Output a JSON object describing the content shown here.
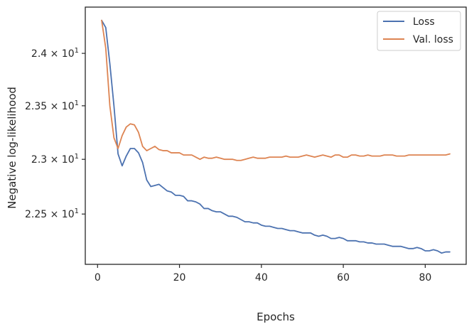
{
  "chart_data": {
    "type": "line",
    "title": "",
    "xlabel": "Epochs",
    "ylabel": "Negative log-likelihood",
    "xlim": [
      -3,
      90
    ],
    "ylim": [
      22.05,
      24.45
    ],
    "y_scale": "log",
    "grid": false,
    "legend_position": "top-right",
    "x_ticks": [
      0,
      20,
      40,
      60,
      80
    ],
    "x_tick_labels": [
      "0",
      "20",
      "40",
      "60",
      "80"
    ],
    "y_ticks": [
      22.5,
      23.0,
      23.5,
      24.0
    ],
    "y_tick_labels": [
      {
        "mantissa": "2.25",
        "exp": "1"
      },
      {
        "mantissa": "2.3",
        "exp": "1"
      },
      {
        "mantissa": "2.35",
        "exp": "1"
      },
      {
        "mantissa": "2.4",
        "exp": "1"
      }
    ],
    "series": [
      {
        "name": "Loss",
        "color": "#4c72b0",
        "x": [
          1,
          2,
          3,
          4,
          5,
          6,
          7,
          8,
          9,
          10,
          11,
          12,
          13,
          14,
          15,
          16,
          17,
          18,
          19,
          20,
          21,
          22,
          23,
          24,
          25,
          26,
          27,
          28,
          29,
          30,
          31,
          32,
          33,
          34,
          35,
          36,
          37,
          38,
          39,
          40,
          41,
          42,
          43,
          44,
          45,
          46,
          47,
          48,
          49,
          50,
          51,
          52,
          53,
          54,
          55,
          56,
          57,
          58,
          59,
          60,
          61,
          62,
          63,
          64,
          65,
          66,
          67,
          68,
          69,
          70,
          71,
          72,
          73,
          74,
          75,
          76,
          77,
          78,
          79,
          80,
          81,
          82,
          83,
          84,
          85,
          86
        ],
        "values": [
          24.32,
          24.25,
          23.9,
          23.5,
          23.05,
          22.94,
          23.03,
          23.1,
          23.1,
          23.06,
          22.97,
          22.81,
          22.75,
          22.76,
          22.77,
          22.74,
          22.71,
          22.7,
          22.67,
          22.67,
          22.66,
          22.62,
          22.62,
          22.61,
          22.59,
          22.55,
          22.55,
          22.53,
          22.52,
          22.52,
          22.5,
          22.48,
          22.48,
          22.47,
          22.45,
          22.43,
          22.43,
          22.42,
          22.42,
          22.4,
          22.39,
          22.39,
          22.38,
          22.37,
          22.37,
          22.36,
          22.35,
          22.35,
          22.34,
          22.33,
          22.33,
          22.33,
          22.31,
          22.3,
          22.31,
          22.3,
          22.28,
          22.28,
          22.29,
          22.28,
          22.26,
          22.26,
          22.26,
          22.25,
          22.25,
          22.24,
          22.24,
          22.23,
          22.23,
          22.23,
          22.22,
          22.21,
          22.21,
          22.21,
          22.2,
          22.19,
          22.19,
          22.2,
          22.19,
          22.17,
          22.17,
          22.18,
          22.17,
          22.15,
          22.16,
          22.16
        ]
      },
      {
        "name": "Val. loss",
        "color": "#dd8452",
        "x": [
          1,
          2,
          3,
          4,
          5,
          6,
          7,
          8,
          9,
          10,
          11,
          12,
          13,
          14,
          15,
          16,
          17,
          18,
          19,
          20,
          21,
          22,
          23,
          24,
          25,
          26,
          27,
          28,
          29,
          30,
          31,
          32,
          33,
          34,
          35,
          36,
          37,
          38,
          39,
          40,
          41,
          42,
          43,
          44,
          45,
          46,
          47,
          48,
          49,
          50,
          51,
          52,
          53,
          54,
          55,
          56,
          57,
          58,
          59,
          60,
          61,
          62,
          63,
          64,
          65,
          66,
          67,
          68,
          69,
          70,
          71,
          72,
          73,
          74,
          75,
          76,
          77,
          78,
          79,
          80,
          81,
          82,
          83,
          84,
          85,
          86
        ],
        "values": [
          24.32,
          24.05,
          23.5,
          23.2,
          23.1,
          23.22,
          23.3,
          23.33,
          23.32,
          23.25,
          23.12,
          23.08,
          23.1,
          23.12,
          23.09,
          23.08,
          23.08,
          23.06,
          23.06,
          23.06,
          23.04,
          23.04,
          23.04,
          23.02,
          23.0,
          23.02,
          23.01,
          23.01,
          23.02,
          23.01,
          23.0,
          23.0,
          23.0,
          22.99,
          22.99,
          23.0,
          23.01,
          23.02,
          23.01,
          23.01,
          23.01,
          23.02,
          23.02,
          23.02,
          23.02,
          23.03,
          23.02,
          23.02,
          23.02,
          23.03,
          23.04,
          23.03,
          23.02,
          23.03,
          23.04,
          23.03,
          23.02,
          23.04,
          23.04,
          23.02,
          23.02,
          23.04,
          23.04,
          23.03,
          23.03,
          23.04,
          23.03,
          23.03,
          23.03,
          23.04,
          23.04,
          23.04,
          23.03,
          23.03,
          23.03,
          23.04,
          23.04,
          23.04,
          23.04,
          23.04,
          23.04,
          23.04,
          23.04,
          23.04,
          23.04,
          23.05
        ]
      }
    ]
  }
}
